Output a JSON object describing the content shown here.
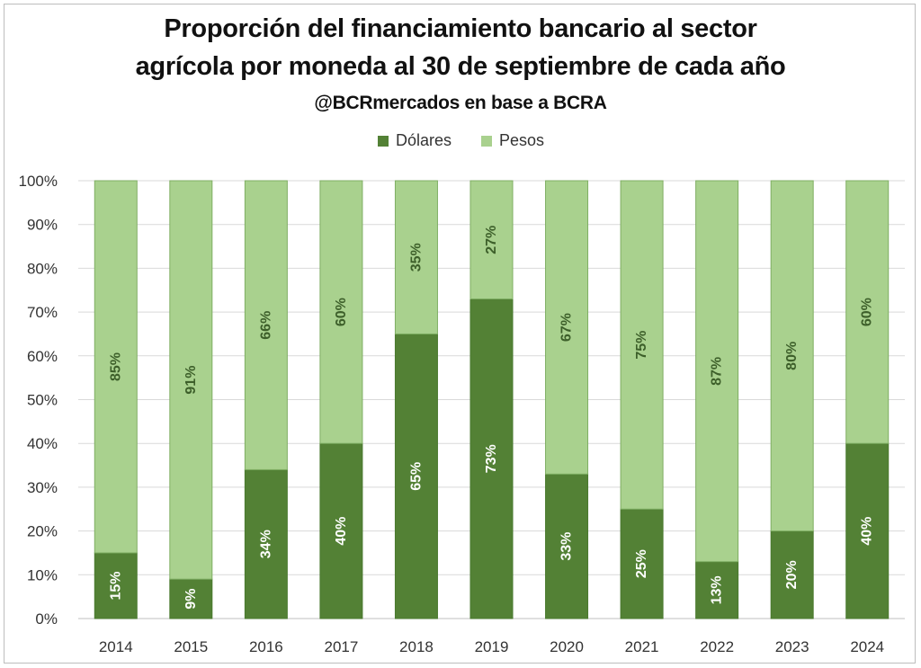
{
  "chart_data": {
    "type": "bar",
    "stacked": true,
    "title": "Proporción del financiamiento bancario al sector",
    "title_line2": "agrícola por moneda al 30 de septiembre de cada año",
    "subtitle": "@BCRmercados en base a BCRA",
    "categories": [
      "2014",
      "2015",
      "2016",
      "2017",
      "2018",
      "2019",
      "2020",
      "2021",
      "2022",
      "2023",
      "2024"
    ],
    "series": [
      {
        "name": "Dólares",
        "color": "#538135",
        "values": [
          15,
          9,
          34,
          40,
          65,
          73,
          33,
          25,
          13,
          20,
          40
        ],
        "labels": [
          "15%",
          "9%",
          "34%",
          "40%",
          "65%",
          "73%",
          "33%",
          "25%",
          "13%",
          "20%",
          "40%"
        ]
      },
      {
        "name": "Pesos",
        "color": "#a9d18e",
        "values": [
          85,
          91,
          66,
          60,
          35,
          27,
          67,
          75,
          87,
          80,
          60
        ],
        "labels": [
          "85%",
          "91%",
          "66%",
          "60%",
          "35%",
          "27%",
          "67%",
          "75%",
          "87%",
          "80%",
          "60%"
        ]
      }
    ],
    "ylim": [
      0,
      100
    ],
    "yticks": [
      "0%",
      "10%",
      "20%",
      "30%",
      "40%",
      "50%",
      "60%",
      "70%",
      "80%",
      "90%",
      "100%"
    ],
    "grid": true,
    "legend_position": "top-center",
    "xlabel": "",
    "ylabel": ""
  }
}
